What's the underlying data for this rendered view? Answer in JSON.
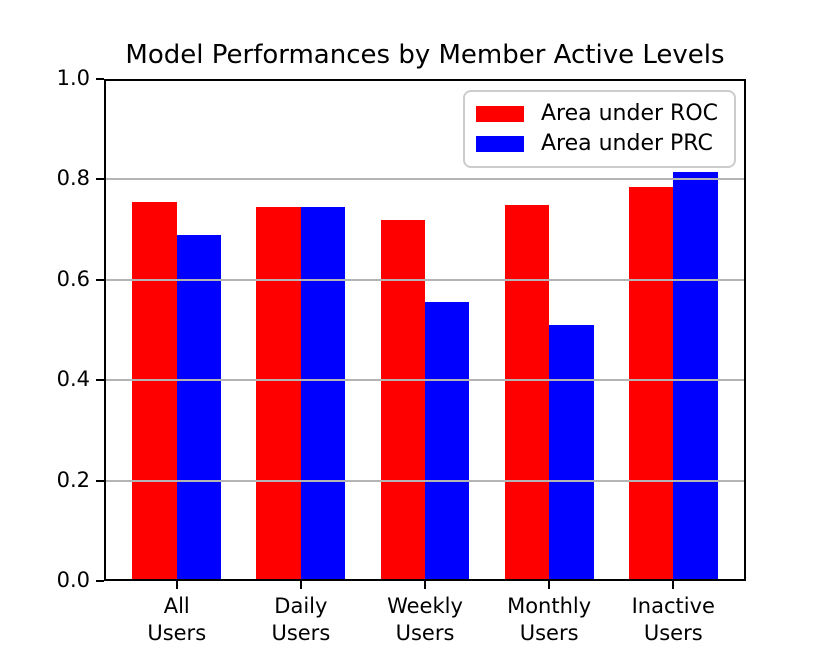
{
  "chart_data": {
    "type": "bar",
    "title": "Model Performances by Member Active Levels",
    "categories": [
      "All\nUsers",
      "Daily\nUsers",
      "Weekly\nUsers",
      "Monthly\nUsers",
      "Inactive\nUsers"
    ],
    "series": [
      {
        "name": "Area under ROC",
        "color": "#ff0000",
        "values": [
          0.755,
          0.745,
          0.72,
          0.75,
          0.785
        ]
      },
      {
        "name": "Area under PRC",
        "color": "#0000ff",
        "values": [
          0.69,
          0.745,
          0.555,
          0.51,
          0.815
        ]
      }
    ],
    "xlabel": "",
    "ylabel": "",
    "ylim": [
      0.0,
      1.0
    ],
    "yticks": [
      0.0,
      0.2,
      0.4,
      0.6,
      0.8,
      1.0
    ],
    "grid": true,
    "grid_color": "#b4b4b4",
    "axis_color": "#000000",
    "legend_position": "upper right"
  }
}
